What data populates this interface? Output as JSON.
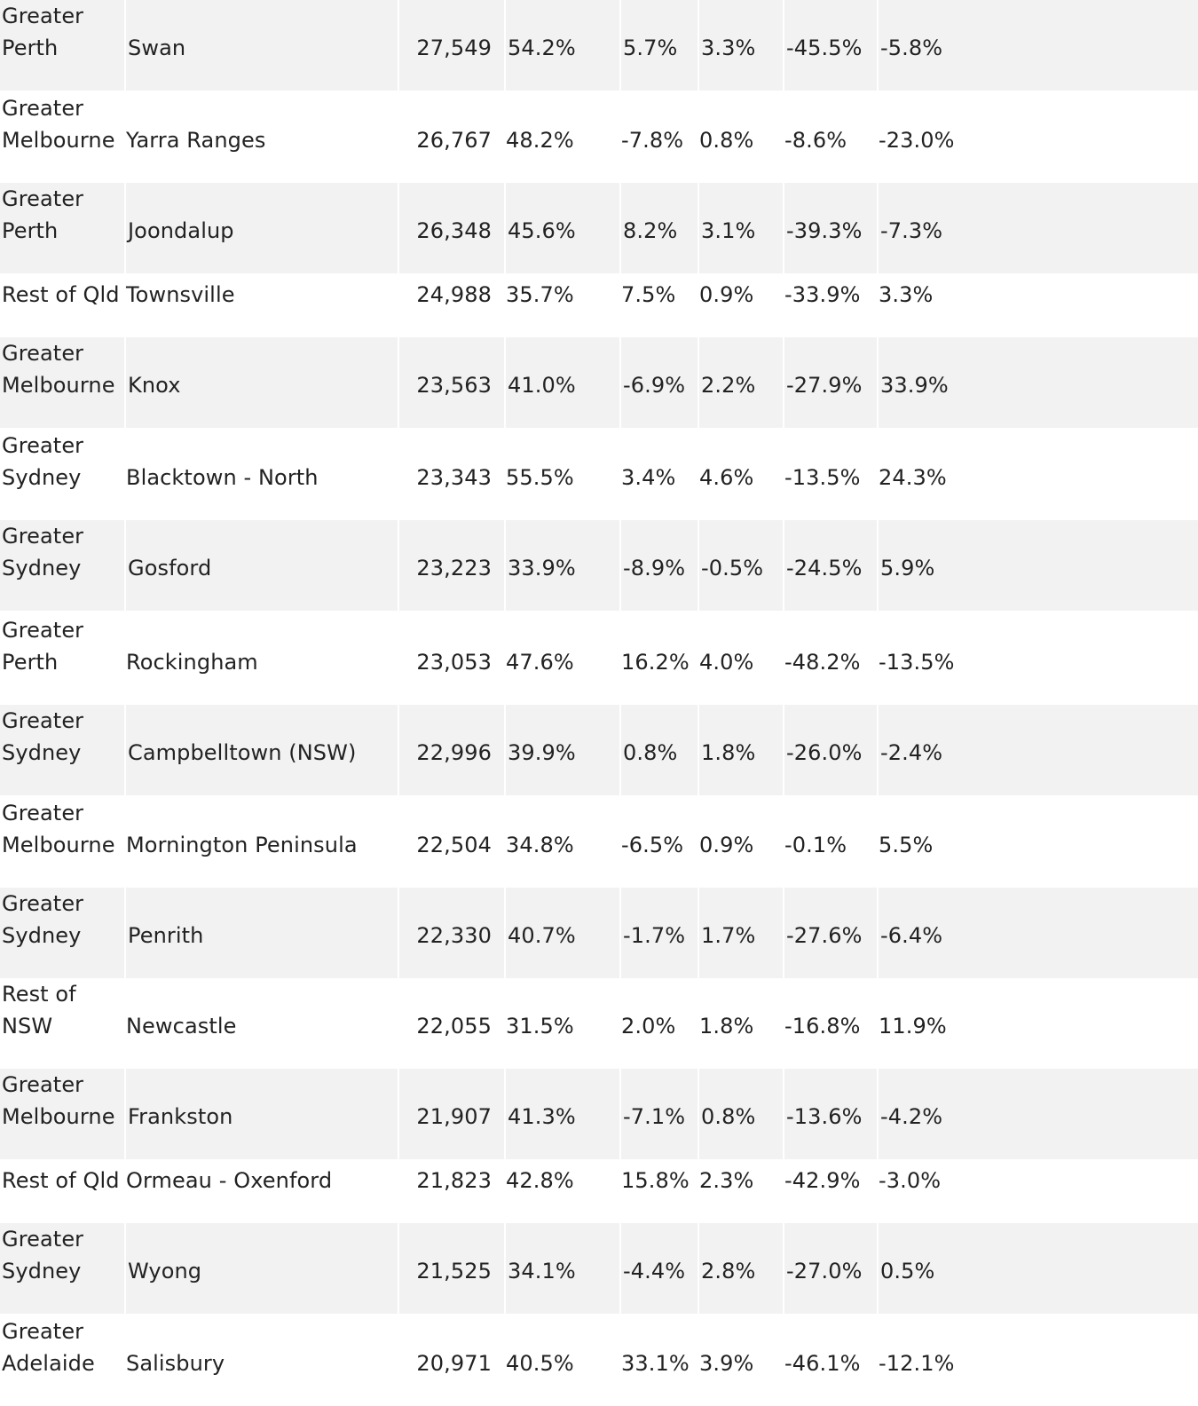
{
  "table": {
    "rows": [
      {
        "region": "Greater Perth",
        "area": "Swan",
        "value": "27,549",
        "share": "54.2%",
        "c1": "5.7%",
        "c2": "3.3%",
        "c3": "-45.5%",
        "c4": "-5.8%"
      },
      {
        "region": "Greater Melbourne",
        "area": "Yarra Ranges",
        "value": "26,767",
        "share": "48.2%",
        "c1": "-7.8%",
        "c2": "0.8%",
        "c3": "-8.6%",
        "c4": "-23.0%"
      },
      {
        "region": "Greater Perth",
        "area": "Joondalup",
        "value": "26,348",
        "share": "45.6%",
        "c1": "8.2%",
        "c2": "3.1%",
        "c3": "-39.3%",
        "c4": "-7.3%"
      },
      {
        "region": "Rest of Qld",
        "area": "Townsville",
        "value": "24,988",
        "share": "35.7%",
        "c1": "7.5%",
        "c2": "0.9%",
        "c3": "-33.9%",
        "c4": "3.3%"
      },
      {
        "region": "Greater Melbourne",
        "area": "Knox",
        "value": "23,563",
        "share": "41.0%",
        "c1": "-6.9%",
        "c2": "2.2%",
        "c3": "-27.9%",
        "c4": "33.9%"
      },
      {
        "region": "Greater Sydney",
        "area": "Blacktown - North",
        "value": "23,343",
        "share": "55.5%",
        "c1": "3.4%",
        "c2": "4.6%",
        "c3": "-13.5%",
        "c4": "24.3%"
      },
      {
        "region": "Greater Sydney",
        "area": "Gosford",
        "value": "23,223",
        "share": "33.9%",
        "c1": "-8.9%",
        "c2": "-0.5%",
        "c3": "-24.5%",
        "c4": "5.9%"
      },
      {
        "region": "Greater Perth",
        "area": "Rockingham",
        "value": "23,053",
        "share": "47.6%",
        "c1": "16.2%",
        "c2": "4.0%",
        "c3": "-48.2%",
        "c4": "-13.5%"
      },
      {
        "region": "Greater Sydney",
        "area": "Campbelltown (NSW)",
        "value": "22,996",
        "share": "39.9%",
        "c1": "0.8%",
        "c2": "1.8%",
        "c3": "-26.0%",
        "c4": "-2.4%"
      },
      {
        "region": "Greater Melbourne",
        "area": "Mornington Peninsula",
        "value": "22,504",
        "share": "34.8%",
        "c1": "-6.5%",
        "c2": "0.9%",
        "c3": "-0.1%",
        "c4": "5.5%"
      },
      {
        "region": "Greater Sydney",
        "area": "Penrith",
        "value": "22,330",
        "share": "40.7%",
        "c1": "-1.7%",
        "c2": "1.7%",
        "c3": "-27.6%",
        "c4": "-6.4%"
      },
      {
        "region": "Rest of NSW",
        "area": "Newcastle",
        "value": "22,055",
        "share": "31.5%",
        "c1": "2.0%",
        "c2": "1.8%",
        "c3": "-16.8%",
        "c4": "11.9%"
      },
      {
        "region": "Greater Melbourne",
        "area": "Frankston",
        "value": "21,907",
        "share": "41.3%",
        "c1": "-7.1%",
        "c2": "0.8%",
        "c3": "-13.6%",
        "c4": "-4.2%"
      },
      {
        "region": "Rest of Qld",
        "area": "Ormeau - Oxenford",
        "value": "21,823",
        "share": "42.8%",
        "c1": "15.8%",
        "c2": "2.3%",
        "c3": "-42.9%",
        "c4": "-3.0%"
      },
      {
        "region": "Greater Sydney",
        "area": "Wyong",
        "value": "21,525",
        "share": "34.1%",
        "c1": "-4.4%",
        "c2": "2.8%",
        "c3": "-27.0%",
        "c4": "0.5%"
      },
      {
        "region": "Greater Adelaide",
        "area": "Salisbury",
        "value": "20,971",
        "share": "40.5%",
        "c1": "33.1%",
        "c2": "3.9%",
        "c3": "-46.1%",
        "c4": "-12.1%"
      }
    ]
  }
}
